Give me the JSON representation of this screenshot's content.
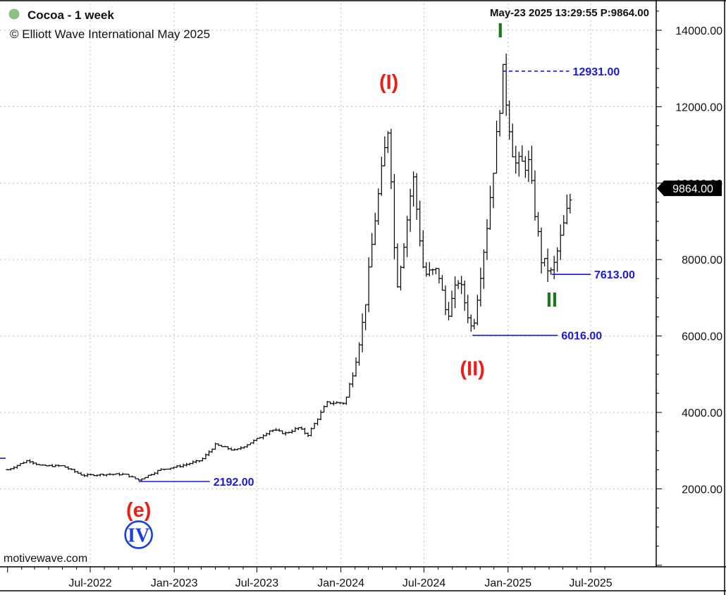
{
  "header": {
    "instrument": "Cocoa - 1 week",
    "copyright": "© Elliott Wave International May 2025",
    "timestamp": "May-23 2025  13:29:55  P:9864.00",
    "status_color": "#8cc084"
  },
  "watermark": "motivewave.com",
  "chart_data": {
    "type": "ohlc-bar",
    "title": "Cocoa - 1 week",
    "x_axis": {
      "range": [
        "2022-01-01",
        "2025-08-01"
      ],
      "tick_labels": [
        "Jul-2022",
        "Jan-2023",
        "Jul-2023",
        "Jan-2024",
        "Jul-2024",
        "Jan-2025",
        "Jul-2025"
      ],
      "tick_dates": [
        "2022-07-01",
        "2023-01-01",
        "2023-07-01",
        "2024-01-01",
        "2024-07-01",
        "2025-01-01",
        "2025-07-01"
      ]
    },
    "y_axis": {
      "range": [
        -40,
        14700
      ],
      "tick_values": [
        2000,
        4000,
        6000,
        8000,
        10000,
        12000,
        14000
      ],
      "tick_labels": [
        "2000.00",
        "4000.00",
        "6000.00",
        "8000.00",
        "10000.00",
        "12000.00",
        "14000.00"
      ],
      "position": "right"
    },
    "grid": true,
    "last_price": {
      "value": 9864,
      "label": "9864.00"
    },
    "price_path": [
      [
        "2022-01-01",
        2500
      ],
      [
        "2022-02-15",
        2750
      ],
      [
        "2022-03-15",
        2600
      ],
      [
        "2022-05-01",
        2600
      ],
      [
        "2022-06-15",
        2350
      ],
      [
        "2022-08-01",
        2380
      ],
      [
        "2022-09-15",
        2380
      ],
      [
        "2022-10-15",
        2230
      ],
      [
        "2022-12-01",
        2500
      ],
      [
        "2023-01-15",
        2600
      ],
      [
        "2023-03-01",
        2750
      ],
      [
        "2023-04-01",
        3150
      ],
      [
        "2023-05-15",
        3000
      ],
      [
        "2023-07-01",
        3300
      ],
      [
        "2023-08-01",
        3550
      ],
      [
        "2023-09-01",
        3450
      ],
      [
        "2023-10-01",
        3600
      ],
      [
        "2023-10-20",
        3400
      ],
      [
        "2023-12-01",
        4250
      ],
      [
        "2024-01-10",
        4250
      ],
      [
        "2024-02-01",
        5300
      ],
      [
        "2024-02-20",
        6500
      ],
      [
        "2024-03-15",
        9000
      ],
      [
        "2024-04-15",
        11600
      ],
      [
        "2024-05-01",
        7200
      ],
      [
        "2024-05-15",
        8200
      ],
      [
        "2024-06-07",
        10200
      ],
      [
        "2024-07-01",
        7600
      ],
      [
        "2024-08-01",
        7700
      ],
      [
        "2024-08-20",
        6500
      ],
      [
        "2024-09-15",
        7500
      ],
      [
        "2024-10-15",
        6100
      ],
      [
        "2024-11-15",
        8800
      ],
      [
        "2024-12-10",
        11500
      ],
      [
        "2024-12-20",
        12931
      ],
      [
        "2025-01-15",
        10500
      ],
      [
        "2025-02-15",
        10500
      ],
      [
        "2025-03-15",
        8000
      ],
      [
        "2025-04-07",
        7613
      ],
      [
        "2025-04-25",
        8500
      ],
      [
        "2025-05-23",
        9864
      ]
    ],
    "level_lines": [
      {
        "value": 12931,
        "label": "12931.00",
        "style": "dashed",
        "from": "2024-12-20",
        "to": "2025-05-15",
        "label_at": "2025-05-15"
      },
      {
        "value": 7613,
        "label": "7613.00",
        "style": "solid",
        "from": "2025-04-07",
        "to": "2025-07-01",
        "label_at": "2025-07-01"
      },
      {
        "value": 6016,
        "label": "6016.00",
        "style": "solid",
        "from": "2024-10-15",
        "to": "2025-04-20",
        "label_at": "2025-04-20"
      },
      {
        "value": 2192,
        "label": "2192.00",
        "style": "solid",
        "from": "2022-10-15",
        "to": "2023-03-20",
        "label_at": "2023-03-20"
      }
    ],
    "edge_line": {
      "value": 2800
    },
    "wave_labels": [
      {
        "text": "(I)",
        "color": "#e8201c",
        "date": "2024-04-15",
        "value": 12650
      },
      {
        "text": "(II)",
        "color": "#e8201c",
        "date": "2024-10-15",
        "value": 5150
      },
      {
        "text": "I",
        "color": "#1a7a1a",
        "date": "2024-12-15",
        "value": 14000
      },
      {
        "text": "II",
        "color": "#1a7a1a",
        "date": "2025-04-07",
        "value": 6950
      },
      {
        "text": "(e)",
        "color": "#e8201c",
        "date": "2022-10-15",
        "value": 1450
      },
      {
        "text": "IV",
        "color": "#1a3fe0",
        "date": "2022-10-15",
        "value": 800,
        "circled": true
      }
    ],
    "colors": {
      "bars": "#000000",
      "level_lines": "#1a1ad6",
      "level_text": "#1a1ad6",
      "grid": "#c8c8c8",
      "price_tag_bg": "#000000",
      "price_tag_text": "#ffffff"
    }
  }
}
